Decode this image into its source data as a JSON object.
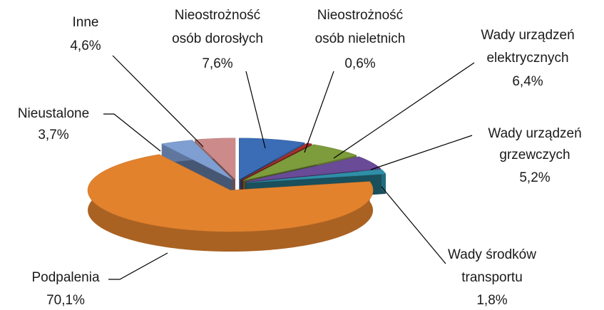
{
  "chart_data": {
    "type": "pie3d",
    "categories": [
      [
        "Nieostrożność",
        "osób dorosłych"
      ],
      [
        "Nieostrożność",
        "osób nieletnich"
      ],
      [
        "Wady urządzeń",
        "elektrycznych"
      ],
      [
        "Wady urządzeń",
        "grzewczych"
      ],
      [
        "Wady środków",
        "transportu"
      ],
      [
        "Podpalenia"
      ],
      [
        "Nieustalone"
      ],
      [
        "Inne"
      ]
    ],
    "values": [
      7.6,
      0.6,
      6.4,
      5.2,
      1.8,
      70.1,
      3.7,
      4.6
    ],
    "value_labels": [
      "7,6%",
      "0,6%",
      "6,4%",
      "5,2%",
      "1,8%",
      "70,1%",
      "3,7%",
      "4,6%"
    ],
    "colors": [
      "#3a6db5",
      "#a8302c",
      "#7d9c3c",
      "#6a4b98",
      "#2f8fa8",
      "#e3822d",
      "#7f9fd2",
      "#cc8b8a"
    ]
  }
}
